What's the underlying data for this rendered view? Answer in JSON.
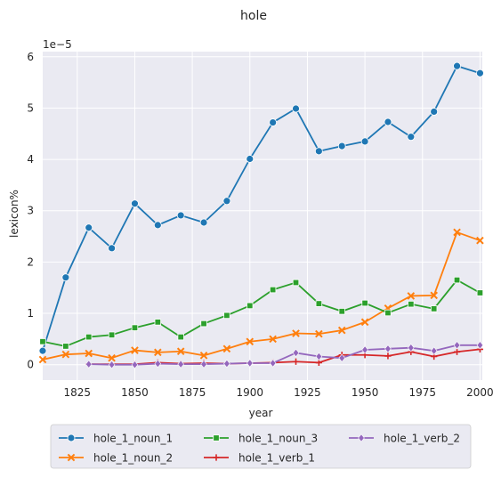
{
  "chart_data": {
    "type": "line",
    "title": "hole",
    "xlabel": "year",
    "ylabel": "lexicon%",
    "y_scale_label": "1e−5",
    "xlim": [
      1810,
      2001
    ],
    "ylim": [
      -0.3,
      6.1
    ],
    "x_ticks": [
      1825,
      1850,
      1875,
      1900,
      1925,
      1950,
      1975,
      2000
    ],
    "y_ticks": [
      0,
      1,
      2,
      3,
      4,
      5,
      6
    ],
    "grid": true,
    "legend_position": "bottom-center",
    "series": [
      {
        "name": "hole_1_noun_1",
        "color": "#1f77b4",
        "marker": "circle",
        "x": [
          1810,
          1820,
          1830,
          1840,
          1850,
          1860,
          1870,
          1880,
          1890,
          1900,
          1910,
          1920,
          1930,
          1940,
          1950,
          1960,
          1970,
          1980,
          1990,
          2000
        ],
        "values": [
          0.27,
          1.7,
          2.67,
          2.27,
          3.14,
          2.72,
          2.91,
          2.77,
          3.19,
          4.01,
          4.72,
          4.99,
          4.16,
          4.26,
          4.35,
          4.73,
          4.44,
          4.93,
          5.82,
          5.68
        ]
      },
      {
        "name": "hole_1_noun_2",
        "color": "#ff7f0e",
        "marker": "x",
        "x": [
          1810,
          1820,
          1830,
          1840,
          1850,
          1860,
          1870,
          1880,
          1890,
          1900,
          1910,
          1920,
          1930,
          1940,
          1950,
          1960,
          1970,
          1980,
          1990,
          2000
        ],
        "values": [
          0.1,
          0.2,
          0.22,
          0.13,
          0.28,
          0.24,
          0.26,
          0.18,
          0.31,
          0.45,
          0.5,
          0.61,
          0.6,
          0.67,
          0.83,
          1.1,
          1.34,
          1.35,
          2.58,
          2.42
        ]
      },
      {
        "name": "hole_1_noun_3",
        "color": "#2ca02c",
        "marker": "square",
        "x": [
          1810,
          1820,
          1830,
          1840,
          1850,
          1860,
          1870,
          1880,
          1890,
          1900,
          1910,
          1920,
          1930,
          1940,
          1950,
          1960,
          1970,
          1980,
          1990,
          2000
        ],
        "values": [
          0.45,
          0.36,
          0.54,
          0.58,
          0.72,
          0.83,
          0.54,
          0.8,
          0.96,
          1.15,
          1.46,
          1.6,
          1.19,
          1.04,
          1.2,
          1.01,
          1.18,
          1.09,
          1.65,
          1.4
        ]
      },
      {
        "name": "hole_1_verb_1",
        "color": "#d62728",
        "marker": "plus",
        "x": [
          1830,
          1840,
          1850,
          1860,
          1870,
          1880,
          1890,
          1900,
          1910,
          1920,
          1930,
          1940,
          1950,
          1960,
          1970,
          1980,
          1990,
          2000
        ],
        "values": [
          0.01,
          0.01,
          0.01,
          0.04,
          0.02,
          0.03,
          0.02,
          0.03,
          0.04,
          0.06,
          0.04,
          0.19,
          0.19,
          0.17,
          0.25,
          0.16,
          0.25,
          0.3
        ]
      },
      {
        "name": "hole_1_verb_2",
        "color": "#9467bd",
        "marker": "diamond",
        "x": [
          1830,
          1840,
          1850,
          1860,
          1870,
          1880,
          1890,
          1900,
          1910,
          1920,
          1930,
          1940,
          1950,
          1960,
          1970,
          1980,
          1990,
          2000
        ],
        "values": [
          0.01,
          0.0,
          0.0,
          0.02,
          0.01,
          0.01,
          0.02,
          0.03,
          0.03,
          0.23,
          0.16,
          0.13,
          0.29,
          0.31,
          0.33,
          0.27,
          0.38,
          0.38
        ]
      }
    ]
  }
}
